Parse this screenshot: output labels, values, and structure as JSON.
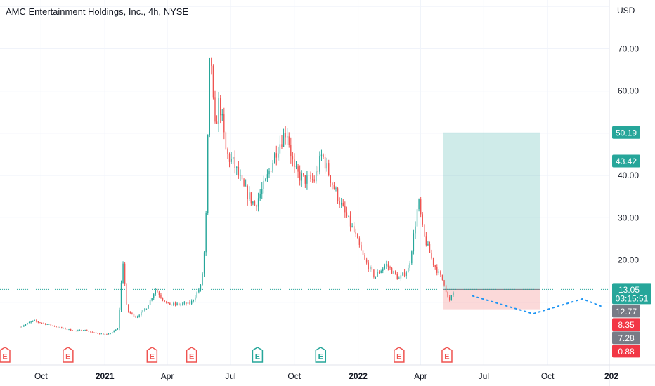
{
  "header": {
    "title": "AMC Entertainment Holdings, Inc., 4h, NYSE"
  },
  "chart_data": {
    "type": "candlestick",
    "title": "AMC Entertainment Holdings, Inc., 4h, NYSE",
    "currency_label": "USD",
    "y_ticks": [
      "20.00",
      "30.00",
      "40.00",
      "50.00",
      "60.00",
      "70.00"
    ],
    "y_tick_values": [
      20,
      30,
      40,
      50,
      60,
      70
    ],
    "x_ticks": [
      {
        "label": "Oct",
        "bold": false
      },
      {
        "label": "2021",
        "bold": true
      },
      {
        "label": "Apr",
        "bold": false
      },
      {
        "label": "Jul",
        "bold": false
      },
      {
        "label": "Oct",
        "bold": false
      },
      {
        "label": "2022",
        "bold": true
      },
      {
        "label": "Apr",
        "bold": false
      },
      {
        "label": "Jul",
        "bold": false
      },
      {
        "label": "Oct",
        "bold": false
      },
      {
        "label": "202",
        "bold": true
      }
    ],
    "price_path": [
      [
        "2020-09-01",
        4.2
      ],
      [
        "2020-09-20",
        5.6
      ],
      [
        "2020-10-10",
        4.8
      ],
      [
        "2020-10-30",
        3.9
      ],
      [
        "2020-11-20",
        3.2
      ],
      [
        "2020-12-01",
        3.5
      ],
      [
        "2020-12-15",
        2.8
      ],
      [
        "2021-01-05",
        2.3
      ],
      [
        "2021-01-20",
        3.8
      ],
      [
        "2021-01-27",
        20.0
      ],
      [
        "2021-02-02",
        8.0
      ],
      [
        "2021-02-15",
        6.5
      ],
      [
        "2021-03-01",
        8.5
      ],
      [
        "2021-03-15",
        13.0
      ],
      [
        "2021-04-01",
        9.5
      ],
      [
        "2021-04-20",
        9.5
      ],
      [
        "2021-05-05",
        9.8
      ],
      [
        "2021-05-20",
        14.0
      ],
      [
        "2021-05-26",
        25.0
      ],
      [
        "2021-06-02",
        72.5
      ],
      [
        "2021-06-08",
        50.0
      ],
      [
        "2021-06-15",
        58.0
      ],
      [
        "2021-06-25",
        45.0
      ],
      [
        "2021-07-05",
        43.0
      ],
      [
        "2021-07-20",
        37.0
      ],
      [
        "2021-08-05",
        33.0
      ],
      [
        "2021-08-20",
        38.0
      ],
      [
        "2021-09-05",
        46.0
      ],
      [
        "2021-09-20",
        51.0
      ],
      [
        "2021-10-01",
        41.0
      ],
      [
        "2021-10-15",
        39.0
      ],
      [
        "2021-10-30",
        39.0
      ],
      [
        "2021-11-10",
        45.0
      ],
      [
        "2021-11-25",
        38.0
      ],
      [
        "2021-12-10",
        32.0
      ],
      [
        "2021-12-25",
        27.0
      ],
      [
        "2022-01-10",
        20.0
      ],
      [
        "2022-01-25",
        16.0
      ],
      [
        "2022-02-10",
        19.0
      ],
      [
        "2022-03-01",
        15.5
      ],
      [
        "2022-03-15",
        18.0
      ],
      [
        "2022-03-29",
        34.0
      ],
      [
        "2022-04-05",
        26.0
      ],
      [
        "2022-04-20",
        19.0
      ],
      [
        "2022-05-05",
        14.5
      ],
      [
        "2022-05-12",
        10.0
      ],
      [
        "2022-05-20",
        13.05
      ]
    ],
    "forecast_path": [
      [
        "2022-06-15",
        11.5
      ],
      [
        "2022-09-10",
        7.28
      ],
      [
        "2022-11-20",
        10.8
      ],
      [
        "2022-12-20",
        8.9
      ]
    ],
    "position": {
      "type": "long",
      "start": "2022-05-03",
      "end": "2022-09-20",
      "entry": 13.05,
      "target": 50.19,
      "stop": 8.35,
      "target_color": "#26a69a",
      "stop_color": "#ef5350"
    },
    "earnings_markers": [
      {
        "date": "2020-08-10",
        "label": "E",
        "type": "miss"
      },
      {
        "date": "2020-11-09",
        "label": "E",
        "type": "miss"
      },
      {
        "date": "2021-03-10",
        "label": "E",
        "type": "miss"
      },
      {
        "date": "2021-05-06",
        "label": "E",
        "type": "miss"
      },
      {
        "date": "2021-08-09",
        "label": "E",
        "type": "beat"
      },
      {
        "date": "2021-11-08",
        "label": "E",
        "type": "beat"
      },
      {
        "date": "2022-03-01",
        "label": "E",
        "type": "miss"
      },
      {
        "date": "2022-05-09",
        "label": "E",
        "type": "miss"
      }
    ],
    "price_badges": [
      {
        "value": 50.19,
        "text": "50.19",
        "color": "#26a69a"
      },
      {
        "value": 43.42,
        "text": "43.42",
        "color": "#26a69a"
      },
      {
        "value": 13.05,
        "text": "13.05",
        "color": "#26a69a",
        "countdown": "03:15:51"
      },
      {
        "value": 12.77,
        "text": "12.77",
        "color": "#787b86"
      },
      {
        "value": 8.35,
        "text": "8.35",
        "color": "#f23645"
      },
      {
        "value": 7.28,
        "text": "7.28",
        "color": "#787b86"
      },
      {
        "value": 0.88,
        "text": "0.88",
        "color": "#f23645"
      }
    ],
    "colors": {
      "up": "#26a69a",
      "down": "#ef5350",
      "grid": "#f0f3fa",
      "axis_border": "#e0e3eb",
      "current_price_line": "#26a69a",
      "forecast": "#2196f3"
    },
    "grid": true
  }
}
